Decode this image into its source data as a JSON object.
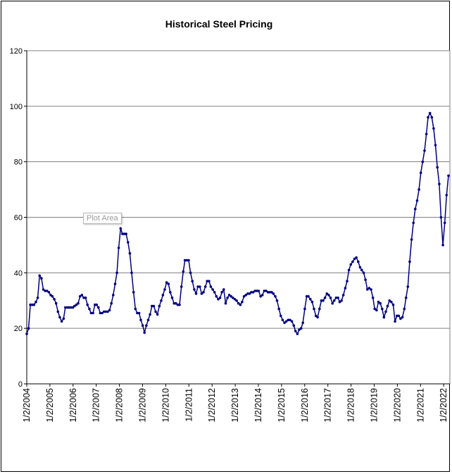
{
  "chart_data": {
    "type": "line",
    "title": "Historical Steel Pricing",
    "xlabel": "",
    "ylabel": "",
    "ylim": [
      0,
      120
    ],
    "y_ticks": [
      0,
      20,
      40,
      60,
      80,
      100,
      120
    ],
    "x_tick_labels": [
      "1/2/2004",
      "1/2/2005",
      "1/2/2006",
      "1/2/2007",
      "1/2/2008",
      "1/2/2009",
      "1/2/2010",
      "1/2/2011",
      "1/2/2012",
      "1/2/2013",
      "1/2/2014",
      "1/2/2015",
      "1/2/2016",
      "1/2/2017",
      "1/2/2018",
      "1/2/2019",
      "1/2/2020",
      "1/2/2021",
      "1/2/2022"
    ],
    "xlim": [
      "2004-01-02",
      "2022-04-01"
    ],
    "grid": "horizontal",
    "legend": "none",
    "series": [
      {
        "color": "#000080",
        "marker": "dot",
        "points": [
          [
            "2004-01-02",
            18
          ],
          [
            "2004-02-01",
            20
          ],
          [
            "2004-03-01",
            28.5
          ],
          [
            "2004-04-01",
            28.5
          ],
          [
            "2004-05-01",
            28.5
          ],
          [
            "2004-06-01",
            29.5
          ],
          [
            "2004-07-01",
            31
          ],
          [
            "2004-08-01",
            39
          ],
          [
            "2004-09-01",
            38
          ],
          [
            "2004-10-01",
            34
          ],
          [
            "2004-11-01",
            33.5
          ],
          [
            "2004-12-01",
            33.5
          ],
          [
            "2005-01-01",
            33
          ],
          [
            "2005-02-01",
            32
          ],
          [
            "2005-03-01",
            31.5
          ],
          [
            "2005-04-01",
            30.5
          ],
          [
            "2005-05-01",
            29
          ],
          [
            "2005-06-01",
            26
          ],
          [
            "2005-07-01",
            24
          ],
          [
            "2005-08-01",
            22.5
          ],
          [
            "2005-09-01",
            23.5
          ],
          [
            "2005-10-01",
            27.5
          ],
          [
            "2005-11-01",
            27.5
          ],
          [
            "2005-12-01",
            27.5
          ],
          [
            "2006-01-01",
            27.5
          ],
          [
            "2006-02-01",
            27.5
          ],
          [
            "2006-03-01",
            28
          ],
          [
            "2006-04-01",
            28.5
          ],
          [
            "2006-05-01",
            29
          ],
          [
            "2006-06-01",
            31.5
          ],
          [
            "2006-07-01",
            32
          ],
          [
            "2006-08-01",
            31
          ],
          [
            "2006-09-01",
            31
          ],
          [
            "2006-10-01",
            28.5
          ],
          [
            "2006-11-01",
            27
          ],
          [
            "2006-12-01",
            25.5
          ],
          [
            "2007-01-01",
            25.5
          ],
          [
            "2007-02-01",
            28.5
          ],
          [
            "2007-03-01",
            28.5
          ],
          [
            "2007-04-01",
            27.5
          ],
          [
            "2007-05-01",
            25.5
          ],
          [
            "2007-06-01",
            25.5
          ],
          [
            "2007-07-01",
            26
          ],
          [
            "2007-08-01",
            26
          ],
          [
            "2007-09-01",
            26
          ],
          [
            "2007-10-01",
            26.5
          ],
          [
            "2007-11-01",
            29
          ],
          [
            "2007-12-01",
            32
          ],
          [
            "2008-01-01",
            36
          ],
          [
            "2008-02-01",
            40
          ],
          [
            "2008-03-01",
            49
          ],
          [
            "2008-04-01",
            56
          ],
          [
            "2008-05-01",
            54
          ],
          [
            "2008-06-01",
            54
          ],
          [
            "2008-07-01",
            54
          ],
          [
            "2008-08-01",
            51
          ],
          [
            "2008-09-01",
            47
          ],
          [
            "2008-10-01",
            40
          ],
          [
            "2008-11-01",
            33
          ],
          [
            "2008-12-01",
            27
          ],
          [
            "2009-01-01",
            25.5
          ],
          [
            "2009-02-01",
            25.5
          ],
          [
            "2009-03-01",
            23
          ],
          [
            "2009-04-01",
            21
          ],
          [
            "2009-05-01",
            18.5
          ],
          [
            "2009-06-01",
            21
          ],
          [
            "2009-07-01",
            23
          ],
          [
            "2009-08-01",
            25
          ],
          [
            "2009-09-01",
            28
          ],
          [
            "2009-10-01",
            28
          ],
          [
            "2009-11-01",
            26
          ],
          [
            "2009-12-01",
            25
          ],
          [
            "2010-01-01",
            28
          ],
          [
            "2010-02-01",
            30
          ],
          [
            "2010-03-01",
            32
          ],
          [
            "2010-04-01",
            34
          ],
          [
            "2010-05-01",
            36.5
          ],
          [
            "2010-06-01",
            36
          ],
          [
            "2010-07-01",
            33
          ],
          [
            "2010-08-01",
            31
          ],
          [
            "2010-09-01",
            29
          ],
          [
            "2010-10-01",
            29
          ],
          [
            "2010-11-01",
            28.5
          ],
          [
            "2010-12-01",
            28.5
          ],
          [
            "2011-01-01",
            35
          ],
          [
            "2011-02-01",
            40.5
          ],
          [
            "2011-03-01",
            44.5
          ],
          [
            "2011-04-01",
            44.5
          ],
          [
            "2011-05-01",
            44.5
          ],
          [
            "2011-06-01",
            40
          ],
          [
            "2011-07-01",
            37
          ],
          [
            "2011-08-01",
            34
          ],
          [
            "2011-09-01",
            32.5
          ],
          [
            "2011-10-01",
            35
          ],
          [
            "2011-11-01",
            35
          ],
          [
            "2011-12-01",
            32.5
          ],
          [
            "2012-01-01",
            33
          ],
          [
            "2012-02-01",
            35
          ],
          [
            "2012-03-01",
            37
          ],
          [
            "2012-04-01",
            37
          ],
          [
            "2012-05-01",
            35
          ],
          [
            "2012-06-01",
            34
          ],
          [
            "2012-07-01",
            33
          ],
          [
            "2012-08-01",
            31.5
          ],
          [
            "2012-09-01",
            30.5
          ],
          [
            "2012-10-01",
            31
          ],
          [
            "2012-11-01",
            33
          ],
          [
            "2012-12-01",
            34
          ],
          [
            "2013-01-01",
            29
          ],
          [
            "2013-02-01",
            31
          ],
          [
            "2013-03-01",
            32
          ],
          [
            "2013-04-01",
            31.5
          ],
          [
            "2013-05-01",
            31
          ],
          [
            "2013-06-01",
            30.5
          ],
          [
            "2013-07-01",
            30
          ],
          [
            "2013-08-01",
            29
          ],
          [
            "2013-09-01",
            28.5
          ],
          [
            "2013-10-01",
            29.5
          ],
          [
            "2013-11-01",
            31.5
          ],
          [
            "2013-12-01",
            32
          ],
          [
            "2014-01-01",
            32.5
          ],
          [
            "2014-02-01",
            32.5
          ],
          [
            "2014-03-01",
            33
          ],
          [
            "2014-04-01",
            33
          ],
          [
            "2014-05-01",
            33.5
          ],
          [
            "2014-06-01",
            33.5
          ],
          [
            "2014-07-01",
            33.5
          ],
          [
            "2014-08-01",
            31.5
          ],
          [
            "2014-09-01",
            32
          ],
          [
            "2014-10-01",
            33.5
          ],
          [
            "2014-11-01",
            33.5
          ],
          [
            "2014-12-01",
            33
          ],
          [
            "2015-01-01",
            33
          ],
          [
            "2015-02-01",
            33
          ],
          [
            "2015-03-01",
            32.5
          ],
          [
            "2015-04-01",
            31.5
          ],
          [
            "2015-05-01",
            30
          ],
          [
            "2015-06-01",
            27
          ],
          [
            "2015-07-01",
            24.5
          ],
          [
            "2015-08-01",
            23
          ],
          [
            "2015-09-01",
            22
          ],
          [
            "2015-10-01",
            22.5
          ],
          [
            "2015-11-01",
            23
          ],
          [
            "2015-12-01",
            23
          ],
          [
            "2016-01-01",
            22.5
          ],
          [
            "2016-02-01",
            21
          ],
          [
            "2016-03-01",
            19
          ],
          [
            "2016-04-01",
            18
          ],
          [
            "2016-05-01",
            19.5
          ],
          [
            "2016-06-01",
            20
          ],
          [
            "2016-07-01",
            22
          ],
          [
            "2016-08-01",
            27
          ],
          [
            "2016-09-01",
            31.5
          ],
          [
            "2016-10-01",
            31.5
          ],
          [
            "2016-11-01",
            30.5
          ],
          [
            "2016-12-01",
            29.5
          ],
          [
            "2017-01-01",
            27
          ],
          [
            "2017-02-01",
            24.5
          ],
          [
            "2017-03-01",
            24
          ],
          [
            "2017-04-01",
            27
          ],
          [
            "2017-05-01",
            30
          ],
          [
            "2017-06-01",
            30
          ],
          [
            "2017-07-01",
            31
          ],
          [
            "2017-08-01",
            32.5
          ],
          [
            "2017-09-01",
            32
          ],
          [
            "2017-10-01",
            31
          ],
          [
            "2017-11-01",
            29
          ],
          [
            "2017-12-01",
            30
          ],
          [
            "2018-01-01",
            31
          ],
          [
            "2018-02-01",
            31
          ],
          [
            "2018-03-01",
            29.5
          ],
          [
            "2018-04-01",
            30
          ],
          [
            "2018-05-01",
            32
          ],
          [
            "2018-06-01",
            34.5
          ],
          [
            "2018-07-01",
            37
          ],
          [
            "2018-08-01",
            41
          ],
          [
            "2018-09-01",
            43
          ],
          [
            "2018-10-01",
            44
          ],
          [
            "2018-11-01",
            45
          ],
          [
            "2018-12-01",
            45.5
          ],
          [
            "2019-01-01",
            44
          ],
          [
            "2019-02-01",
            42
          ],
          [
            "2019-03-01",
            41
          ],
          [
            "2019-04-01",
            40
          ],
          [
            "2019-05-01",
            37.5
          ],
          [
            "2019-06-01",
            34
          ],
          [
            "2019-07-01",
            34.5
          ],
          [
            "2019-08-01",
            34
          ],
          [
            "2019-09-01",
            31
          ],
          [
            "2019-10-01",
            27
          ],
          [
            "2019-11-01",
            26.5
          ],
          [
            "2019-12-01",
            29.5
          ],
          [
            "2020-01-01",
            29
          ],
          [
            "2020-02-01",
            27
          ],
          [
            "2020-03-01",
            24
          ],
          [
            "2020-04-01",
            26
          ],
          [
            "2020-05-01",
            28
          ],
          [
            "2020-06-01",
            30
          ],
          [
            "2020-07-01",
            29.5
          ],
          [
            "2020-08-01",
            28.5
          ],
          [
            "2020-09-01",
            22.5
          ],
          [
            "2020-10-01",
            24.5
          ],
          [
            "2020-11-01",
            24.5
          ],
          [
            "2020-12-01",
            23.5
          ],
          [
            "2021-01-01",
            24
          ],
          [
            "2021-02-01",
            27
          ],
          [
            "2021-03-01",
            31
          ],
          [
            "2021-04-01",
            35
          ],
          [
            "2021-05-01",
            44
          ],
          [
            "2021-06-01",
            52
          ],
          [
            "2021-07-01",
            58
          ],
          [
            "2021-08-01",
            63
          ],
          [
            "2021-09-01",
            66
          ],
          [
            "2021-10-01",
            70
          ],
          [
            "2021-11-01",
            76
          ],
          [
            "2021-12-01",
            80
          ],
          [
            "2022-01-01",
            84
          ],
          [
            "2022-02-01",
            90
          ],
          [
            "2022-03-01",
            96
          ],
          [
            "2022-04-01",
            97.5
          ],
          [
            "2022-05-01",
            96
          ],
          [
            "2022-06-01",
            92
          ],
          [
            "2022-07-01",
            86
          ],
          [
            "2022-08-01",
            78
          ],
          [
            "2022-09-01",
            72
          ],
          [
            "2022-10-01",
            60
          ],
          [
            "2022-11-01",
            50
          ],
          [
            "2022-12-01",
            58
          ],
          [
            "2023-01-01",
            68
          ],
          [
            "2023-02-01",
            75
          ]
        ]
      }
    ]
  }
}
